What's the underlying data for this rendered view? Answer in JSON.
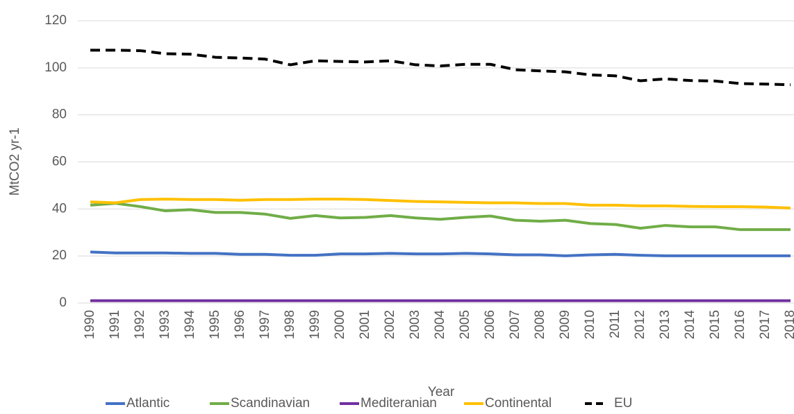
{
  "chart_data": {
    "type": "line",
    "x_label": "Year",
    "y_label": "MtCO2 yr-1",
    "categories": [
      "1990",
      "1991",
      "1992",
      "1993",
      "1994",
      "1995",
      "1996",
      "1997",
      "1998",
      "1999",
      "2000",
      "2001",
      "2002",
      "2003",
      "2004",
      "2005",
      "2006",
      "2007",
      "2008",
      "2009",
      "2010",
      "2011",
      "2012",
      "2013",
      "2014",
      "2015",
      "2016",
      "2017",
      "2018"
    ],
    "series": [
      {
        "name": "Atlantic",
        "color": "#4472c4",
        "values": [
          21.7,
          21.3,
          21.3,
          21.3,
          21.1,
          21.1,
          20.7,
          20.7,
          20.3,
          20.3,
          20.9,
          20.9,
          21.1,
          20.9,
          20.9,
          21.1,
          20.9,
          20.5,
          20.5,
          20.1,
          20.5,
          20.7,
          20.3,
          20.1,
          20.1,
          20.1,
          20.1,
          20.1,
          20.1
        ]
      },
      {
        "name": "Scandinavian",
        "color": "#70ad47",
        "values": [
          41.6,
          42.4,
          41,
          39.2,
          39.7,
          38.5,
          38.5,
          37.8,
          36,
          37.2,
          36.2,
          36.4,
          37.2,
          36.2,
          35.6,
          36.4,
          37,
          35.2,
          34.8,
          35.2,
          33.8,
          33.4,
          31.8,
          33,
          32.4,
          32.4,
          31.2,
          31.2,
          31.2
        ]
      },
      {
        "name": "Mediteranian",
        "color": "#7030a0",
        "values": [
          1,
          1,
          1,
          1,
          1,
          1,
          1,
          1,
          1,
          1,
          1,
          1,
          1,
          1,
          1,
          1,
          1,
          1,
          1,
          1,
          1,
          1,
          1,
          1,
          1,
          1,
          1,
          1,
          1
        ]
      },
      {
        "name": "Continental",
        "color": "#ffc000",
        "values": [
          43,
          42.6,
          44,
          44.2,
          44,
          44,
          43.7,
          44,
          44,
          44.2,
          44.2,
          44,
          43.6,
          43.2,
          43,
          42.8,
          42.6,
          42.6,
          42.3,
          42.3,
          41.6,
          41.6,
          41.3,
          41.3,
          41.1,
          41,
          41,
          40.8,
          40.4
        ]
      },
      {
        "name": "EU",
        "color": "#000000",
        "dashed": true,
        "values": [
          107.5,
          107.5,
          107.3,
          106,
          105.8,
          104.5,
          104.2,
          103.7,
          101.3,
          103,
          102.7,
          102.5,
          103,
          101.3,
          100.8,
          101.5,
          101.5,
          99.2,
          98.7,
          98.3,
          97,
          96.6,
          94.5,
          95.3,
          94.6,
          94.4,
          93.3,
          93.1,
          92.8
        ]
      }
    ],
    "ylim": [
      0,
      120
    ],
    "yticks": [
      0,
      20,
      40,
      60,
      80,
      100,
      120
    ],
    "grid": true
  }
}
